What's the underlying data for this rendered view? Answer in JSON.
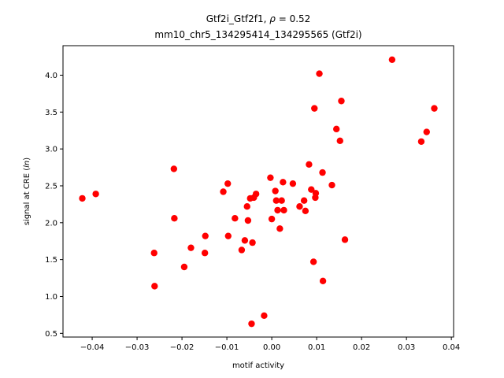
{
  "chart_data": {
    "type": "scatter",
    "title_line1": "Gtf2i_Gtf2f1, ρ = 0.52",
    "title_line2": "mm10_chr5_134295414_134295565 (Gtf2i)",
    "xlabel": "motif activity",
    "ylabel": "signal at CRE (ln)",
    "xlim": [
      -0.0465,
      0.0405
    ],
    "ylim": [
      0.45,
      4.4
    ],
    "xticks": [
      -0.04,
      -0.03,
      -0.02,
      -0.01,
      0.0,
      0.01,
      0.02,
      0.03,
      0.04
    ],
    "xtick_labels": [
      "−0.04",
      "−0.03",
      "−0.02",
      "−0.01",
      "0.00",
      "0.01",
      "0.02",
      "0.03",
      "0.04"
    ],
    "yticks": [
      0.5,
      1.0,
      1.5,
      2.0,
      2.5,
      3.0,
      3.5,
      4.0
    ],
    "ytick_labels": [
      "0.5",
      "1.0",
      "1.5",
      "2.0",
      "2.5",
      "3.0",
      "3.5",
      "4.0"
    ],
    "point_color": "#ff0000",
    "points": [
      {
        "x": -0.0422,
        "y": 2.33
      },
      {
        "x": -0.0392,
        "y": 2.39
      },
      {
        "x": -0.0262,
        "y": 1.59
      },
      {
        "x": -0.0261,
        "y": 1.14
      },
      {
        "x": -0.0218,
        "y": 2.73
      },
      {
        "x": -0.0217,
        "y": 2.06
      },
      {
        "x": -0.0195,
        "y": 1.4
      },
      {
        "x": -0.018,
        "y": 1.66
      },
      {
        "x": -0.0148,
        "y": 1.82
      },
      {
        "x": -0.0149,
        "y": 1.59
      },
      {
        "x": -0.0108,
        "y": 2.42
      },
      {
        "x": -0.0098,
        "y": 2.53
      },
      {
        "x": -0.0097,
        "y": 1.82
      },
      {
        "x": -0.0082,
        "y": 2.06
      },
      {
        "x": -0.0067,
        "y": 1.63
      },
      {
        "x": -0.006,
        "y": 1.76
      },
      {
        "x": -0.0055,
        "y": 2.22
      },
      {
        "x": -0.0053,
        "y": 2.03
      },
      {
        "x": -0.0048,
        "y": 2.33
      },
      {
        "x": -0.0043,
        "y": 1.73
      },
      {
        "x": -0.004,
        "y": 2.34
      },
      {
        "x": -0.0035,
        "y": 2.39
      },
      {
        "x": -0.0045,
        "y": 0.63
      },
      {
        "x": -0.0017,
        "y": 0.74
      },
      {
        "x": -0.0003,
        "y": 2.61
      },
      {
        "x": 0.0,
        "y": 2.05
      },
      {
        "x": 0.0008,
        "y": 2.43
      },
      {
        "x": 0.001,
        "y": 2.3
      },
      {
        "x": 0.0013,
        "y": 2.17
      },
      {
        "x": 0.0018,
        "y": 1.92
      },
      {
        "x": 0.0022,
        "y": 2.3
      },
      {
        "x": 0.0025,
        "y": 2.55
      },
      {
        "x": 0.0027,
        "y": 2.17
      },
      {
        "x": 0.0047,
        "y": 2.53
      },
      {
        "x": 0.0062,
        "y": 2.22
      },
      {
        "x": 0.0072,
        "y": 2.3
      },
      {
        "x": 0.0075,
        "y": 2.16
      },
      {
        "x": 0.0083,
        "y": 2.79
      },
      {
        "x": 0.0088,
        "y": 2.45
      },
      {
        "x": 0.0093,
        "y": 1.47
      },
      {
        "x": 0.0095,
        "y": 3.55
      },
      {
        "x": 0.0097,
        "y": 2.34
      },
      {
        "x": 0.0098,
        "y": 2.4
      },
      {
        "x": 0.0106,
        "y": 4.02
      },
      {
        "x": 0.0113,
        "y": 2.68
      },
      {
        "x": 0.0114,
        "y": 1.21
      },
      {
        "x": 0.0134,
        "y": 2.51
      },
      {
        "x": 0.0144,
        "y": 3.27
      },
      {
        "x": 0.0152,
        "y": 3.11
      },
      {
        "x": 0.0155,
        "y": 3.65
      },
      {
        "x": 0.0163,
        "y": 1.77
      },
      {
        "x": 0.0268,
        "y": 4.21
      },
      {
        "x": 0.0333,
        "y": 3.1
      },
      {
        "x": 0.0345,
        "y": 3.23
      },
      {
        "x": 0.0362,
        "y": 3.55
      }
    ]
  }
}
